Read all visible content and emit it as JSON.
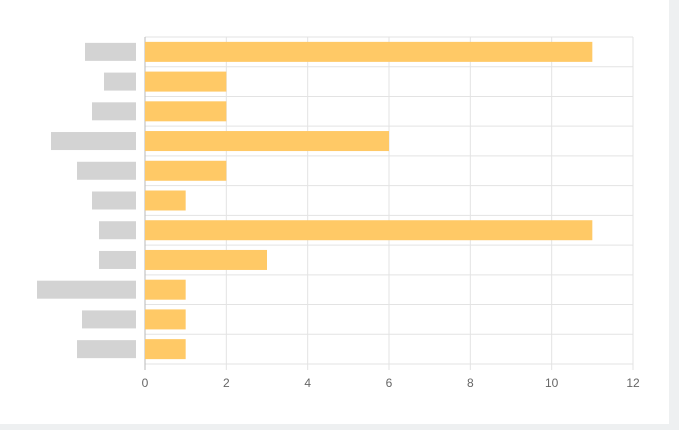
{
  "colors": {
    "bar": "#ffc966",
    "redacted_label": "#d3d3d3",
    "grid": "#e3e3e3",
    "axis": "#b9b9b9",
    "tick_text": "#666666"
  },
  "chart_data": {
    "type": "bar",
    "orientation": "horizontal",
    "title": "",
    "xlabel": "",
    "ylabel": "",
    "xlim": [
      0,
      12
    ],
    "x_ticks": [
      "0",
      "2",
      "4",
      "6",
      "8",
      "10",
      "12"
    ],
    "categories": [
      "",
      "",
      "",
      "",
      "",
      "",
      "",
      "",
      "",
      "",
      ""
    ],
    "category_labels_redacted": true,
    "values": [
      11,
      2,
      2,
      6,
      2,
      1,
      11,
      3,
      1,
      1,
      1
    ],
    "grid": true,
    "legend": "none"
  }
}
